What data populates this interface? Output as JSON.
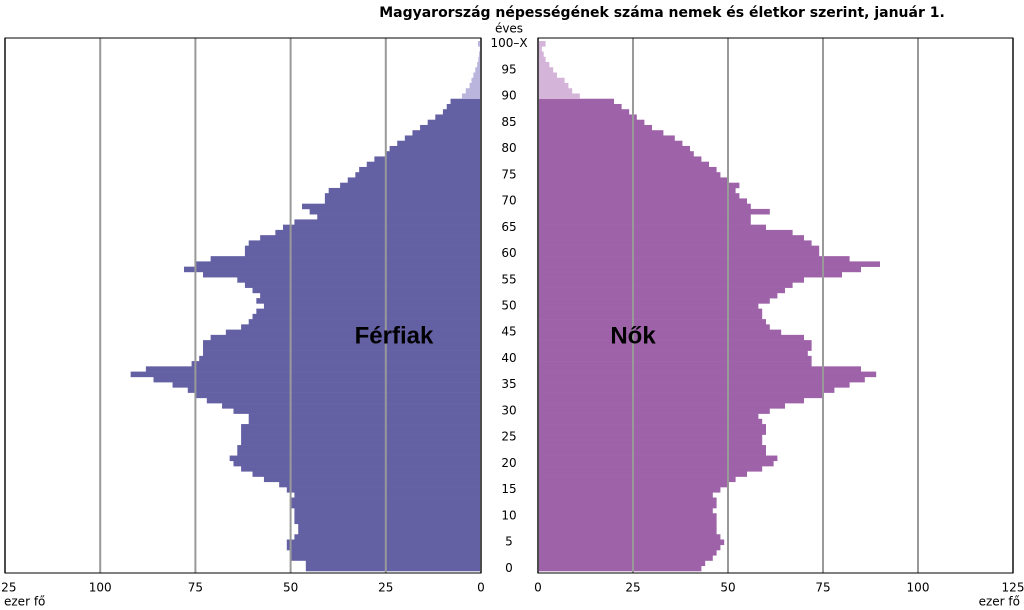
{
  "chart_data": {
    "type": "pyramid",
    "title": "Magyarország népességének száma nemek és életkor szerint, január 1.",
    "y_label": "éves",
    "x_label_left": "ezer fő",
    "x_label_right": "ezer fő",
    "annotations": [
      "Férfiak",
      "Nők"
    ],
    "categories": [
      "0",
      null,
      null,
      null,
      null,
      "5",
      null,
      null,
      null,
      null,
      "10",
      null,
      null,
      null,
      null,
      "15",
      null,
      null,
      null,
      null,
      "20",
      null,
      null,
      null,
      null,
      "25",
      null,
      null,
      null,
      null,
      "30",
      null,
      null,
      null,
      null,
      "35",
      null,
      null,
      null,
      null,
      "40",
      null,
      null,
      null,
      null,
      "45",
      null,
      null,
      null,
      null,
      "50",
      null,
      null,
      null,
      null,
      "55",
      null,
      null,
      null,
      null,
      "60",
      null,
      null,
      null,
      null,
      "65",
      null,
      null,
      null,
      null,
      "70",
      null,
      null,
      null,
      null,
      "75",
      null,
      null,
      null,
      null,
      "80",
      null,
      null,
      null,
      null,
      "85",
      null,
      null,
      null,
      null,
      "90",
      null,
      null,
      null,
      null,
      "95",
      null,
      null,
      null,
      null,
      "100–X"
    ],
    "light_from": 90,
    "series": [
      {
        "name": "Férfiak",
        "side": "left",
        "color": "#6460a4",
        "light_color": "#b9b5dc",
        "values": [
          46,
          46,
          50,
          50,
          51,
          51,
          49,
          48,
          48,
          49,
          49,
          49,
          50,
          50,
          49,
          51,
          53,
          57,
          60,
          63,
          65,
          66,
          64,
          64,
          63,
          63,
          63,
          63,
          61,
          61,
          65,
          68,
          72,
          75,
          77,
          81,
          86,
          92,
          88,
          76,
          74,
          73,
          73,
          73,
          71,
          67,
          63,
          61,
          60,
          59,
          57,
          59,
          58,
          60,
          62,
          64,
          73,
          78,
          75,
          71,
          62,
          62,
          61,
          58,
          54,
          52,
          49,
          43,
          45,
          47,
          41,
          41,
          40,
          37,
          35,
          33,
          32,
          30,
          28,
          25,
          24,
          22,
          20,
          18,
          16,
          14,
          12,
          10,
          9,
          8,
          5,
          4,
          3,
          2.5,
          2,
          1.5,
          1,
          0.7,
          0.5,
          0.3,
          0.8
        ]
      },
      {
        "name": "Nők",
        "side": "right",
        "color": "#9e62a8",
        "light_color": "#d4b4d8",
        "values": [
          43,
          44,
          46,
          47,
          48,
          49,
          48,
          47,
          47,
          47,
          47,
          46,
          47,
          47,
          46,
          48,
          50,
          52,
          55,
          59,
          62,
          63,
          60,
          60,
          59,
          59,
          60,
          60,
          59,
          58,
          61,
          65,
          70,
          75,
          78,
          82,
          86,
          89,
          85,
          72,
          72,
          71,
          72,
          72,
          70,
          64,
          61,
          60,
          59,
          59,
          58,
          61,
          63,
          65,
          67,
          70,
          80,
          85,
          90,
          82,
          74,
          74,
          72,
          70,
          67,
          60,
          56,
          56,
          61,
          56,
          55,
          53,
          52,
          53,
          50,
          48,
          47,
          45,
          43,
          41,
          40,
          38,
          36,
          33,
          30,
          28,
          26,
          24,
          22,
          20,
          11,
          9,
          8,
          7,
          5,
          4,
          3,
          2,
          1.5,
          1,
          2
        ]
      }
    ],
    "xlim": [
      0,
      125
    ],
    "xticks": [
      0,
      25,
      50,
      75,
      100,
      125
    ],
    "grid": true
  }
}
